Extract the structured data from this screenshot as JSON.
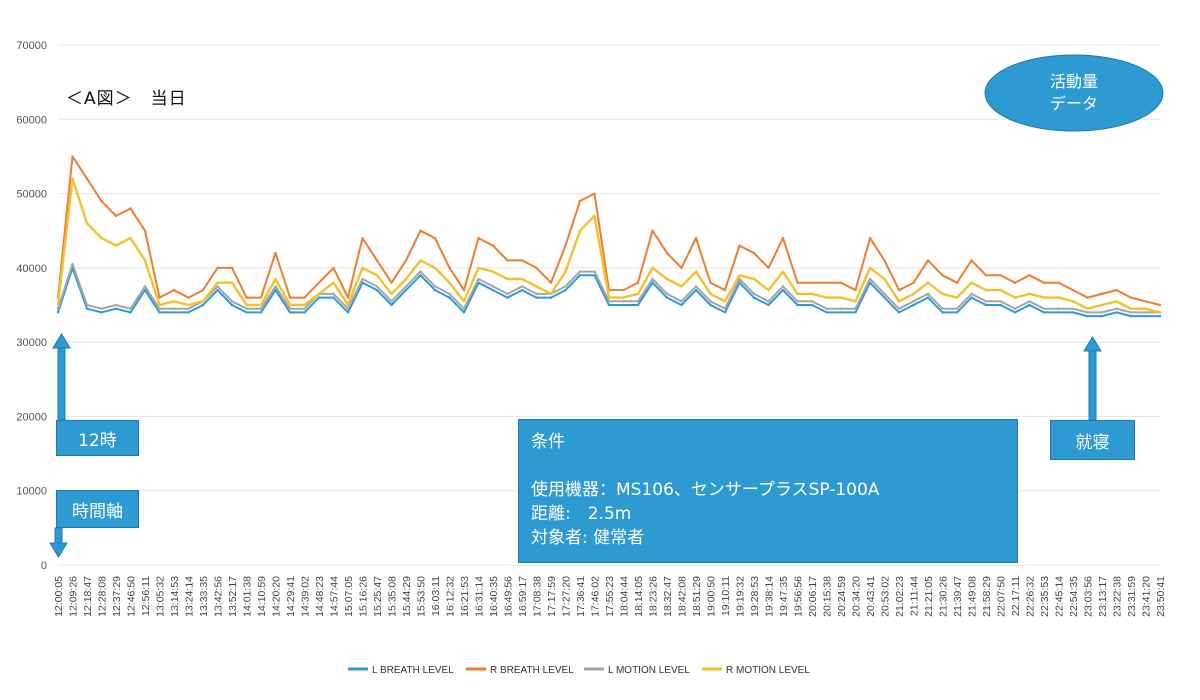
{
  "chart_data": {
    "type": "line",
    "title": "＜A図＞　当日",
    "xlabel": "",
    "ylabel": "",
    "ylim": [
      0,
      70000
    ],
    "y_ticks": [
      0,
      10000,
      20000,
      30000,
      40000,
      50000,
      60000,
      70000
    ],
    "y_tick_labels": [
      "0",
      "10000",
      "20000",
      "30000",
      "40000",
      "50000",
      "60000",
      "70000"
    ],
    "grid": true,
    "legend_position": "bottom",
    "x_tick_labels": [
      "12:00:05",
      "12:09:26",
      "12:18:47",
      "12:28:08",
      "12:37:29",
      "12:46:50",
      "12:56:11",
      "13:05:32",
      "13:14:53",
      "13:24:14",
      "13:33:35",
      "13:42:56",
      "13:52:17",
      "14:01:38",
      "14:10:59",
      "14:20:20",
      "14:29:41",
      "14:39:02",
      "14:48:23",
      "14:57:44",
      "15:07:05",
      "15:16:26",
      "15:25:47",
      "15:35:08",
      "15:44:29",
      "15:53:50",
      "16:03:11",
      "16:12:32",
      "16:21:53",
      "16:31:14",
      "16:40:35",
      "16:49:56",
      "16:59:17",
      "17:08:38",
      "17:17:59",
      "17:27:20",
      "17:36:41",
      "17:46:02",
      "17:55:23",
      "18:04:44",
      "18:14:05",
      "18:23:26",
      "18:32:47",
      "18:42:08",
      "18:51:29",
      "19:00:50",
      "19:10:11",
      "19:19:32",
      "19:28:53",
      "19:38:14",
      "19:47:35",
      "19:56:56",
      "20:06:17",
      "20:15:38",
      "20:24:59",
      "20:34:20",
      "20:43:41",
      "20:53:02",
      "21:02:23",
      "21:11:44",
      "21:21:05",
      "21:30:26",
      "21:39:47",
      "21:49:08",
      "21:58:29",
      "22:07:50",
      "22:17:11",
      "22:26:32",
      "22:35:53",
      "22:45:14",
      "22:54:35",
      "23:03:56",
      "23:13:17",
      "23:22:38",
      "23:31:59",
      "23:41:20",
      "23:50:41"
    ],
    "series": [
      {
        "name": "L BREATH LEVEL",
        "color": "#2e9ad8",
        "values": [
          34000,
          40000,
          34500,
          34000,
          34500,
          34000,
          37000,
          34000,
          34000,
          34000,
          35000,
          37000,
          35000,
          34000,
          34000,
          37000,
          34000,
          34000,
          36000,
          36000,
          34000,
          38000,
          37000,
          35000,
          37000,
          39000,
          37000,
          36000,
          34000,
          38000,
          37000,
          36000,
          37000,
          36000,
          36000,
          37000,
          39000,
          39000,
          35000,
          35000,
          35000,
          38000,
          36000,
          35000,
          37000,
          35000,
          34000,
          38000,
          36000,
          35000,
          37000,
          35000,
          35000,
          34000,
          34000,
          34000,
          38000,
          36000,
          34000,
          35000,
          36000,
          34000,
          34000,
          36000,
          35000,
          35000,
          34000,
          35000,
          34000,
          34000,
          34000,
          33500,
          33500,
          34000,
          33500,
          33500,
          33500
        ]
      },
      {
        "name": "R BREATH LEVEL",
        "color": "#ee7d31",
        "values": [
          36000,
          55000,
          52000,
          49000,
          47000,
          48000,
          45000,
          36000,
          37000,
          36000,
          37000,
          40000,
          40000,
          36000,
          36000,
          42000,
          36000,
          36000,
          38000,
          40000,
          36000,
          44000,
          41000,
          38000,
          41000,
          45000,
          44000,
          40000,
          37000,
          44000,
          43000,
          41000,
          41000,
          40000,
          38000,
          43000,
          49000,
          50000,
          37000,
          37000,
          38000,
          45000,
          42000,
          40000,
          44000,
          38000,
          37000,
          43000,
          42000,
          40000,
          44000,
          38000,
          38000,
          38000,
          38000,
          37000,
          44000,
          41000,
          37000,
          38000,
          41000,
          39000,
          38000,
          41000,
          39000,
          39000,
          38000,
          39000,
          38000,
          38000,
          37000,
          36000,
          36500,
          37000,
          36000,
          35500,
          35000
        ]
      },
      {
        "name": "L MOTION LEVEL",
        "color": "#a5a5a5",
        "values": [
          34500,
          40500,
          35000,
          34500,
          35000,
          34500,
          37500,
          34500,
          34500,
          34500,
          35500,
          37500,
          35500,
          34500,
          34500,
          37500,
          34500,
          34500,
          36500,
          36500,
          34500,
          38500,
          37500,
          35500,
          37500,
          39500,
          37500,
          36500,
          34500,
          38500,
          37500,
          36500,
          37500,
          36500,
          36500,
          37500,
          39500,
          39500,
          35500,
          35500,
          35500,
          38500,
          36500,
          35500,
          37500,
          35500,
          34500,
          38500,
          36500,
          35500,
          37500,
          35500,
          35500,
          34500,
          34500,
          34500,
          38500,
          36500,
          34500,
          35500,
          36500,
          34500,
          34500,
          36500,
          35500,
          35500,
          34500,
          35500,
          34500,
          34500,
          34500,
          34000,
          34000,
          34500,
          34000,
          34000,
          34000
        ]
      },
      {
        "name": "R MOTION LEVEL",
        "color": "#f2c12e",
        "values": [
          35000,
          52000,
          46000,
          44000,
          43000,
          44000,
          41000,
          35000,
          35500,
          35000,
          35500,
          38000,
          38000,
          35000,
          35000,
          38500,
          35000,
          35000,
          36500,
          38000,
          35000,
          40000,
          39000,
          36500,
          38500,
          41000,
          40000,
          38000,
          35500,
          40000,
          39500,
          38500,
          38500,
          37500,
          36500,
          39500,
          45000,
          47000,
          36000,
          36000,
          36500,
          40000,
          38500,
          37500,
          39500,
          36500,
          35500,
          39000,
          38500,
          37000,
          39500,
          36500,
          36500,
          36000,
          36000,
          35500,
          40000,
          38500,
          35500,
          36500,
          38000,
          36500,
          36000,
          38000,
          37000,
          37000,
          36000,
          36500,
          36000,
          36000,
          35500,
          34500,
          35000,
          35500,
          34500,
          34500,
          34000
        ]
      }
    ],
    "annotations": [
      "活動量",
      "データ",
      "12時",
      "時間軸",
      "就寝",
      "条件",
      "使用機器：MS106、センサープラスSP-100A",
      "距離:　2.5m",
      "対象者: 健常者"
    ]
  },
  "badge": {
    "line1": "活動量",
    "line2": "データ"
  },
  "notes": {
    "noon": "12時",
    "time_axis": "時間軸",
    "bedtime": "就寝",
    "conditions": {
      "heading": "条件",
      "device": "使用機器：MS106、センサープラスSP-100A",
      "distance": "距離:　2.5m",
      "subject": "対象者: 健常者"
    }
  },
  "colors": {
    "accent_box": "#2e9ad2",
    "ellipse": "#2e9ad2",
    "grid": "#e4e4e4"
  }
}
